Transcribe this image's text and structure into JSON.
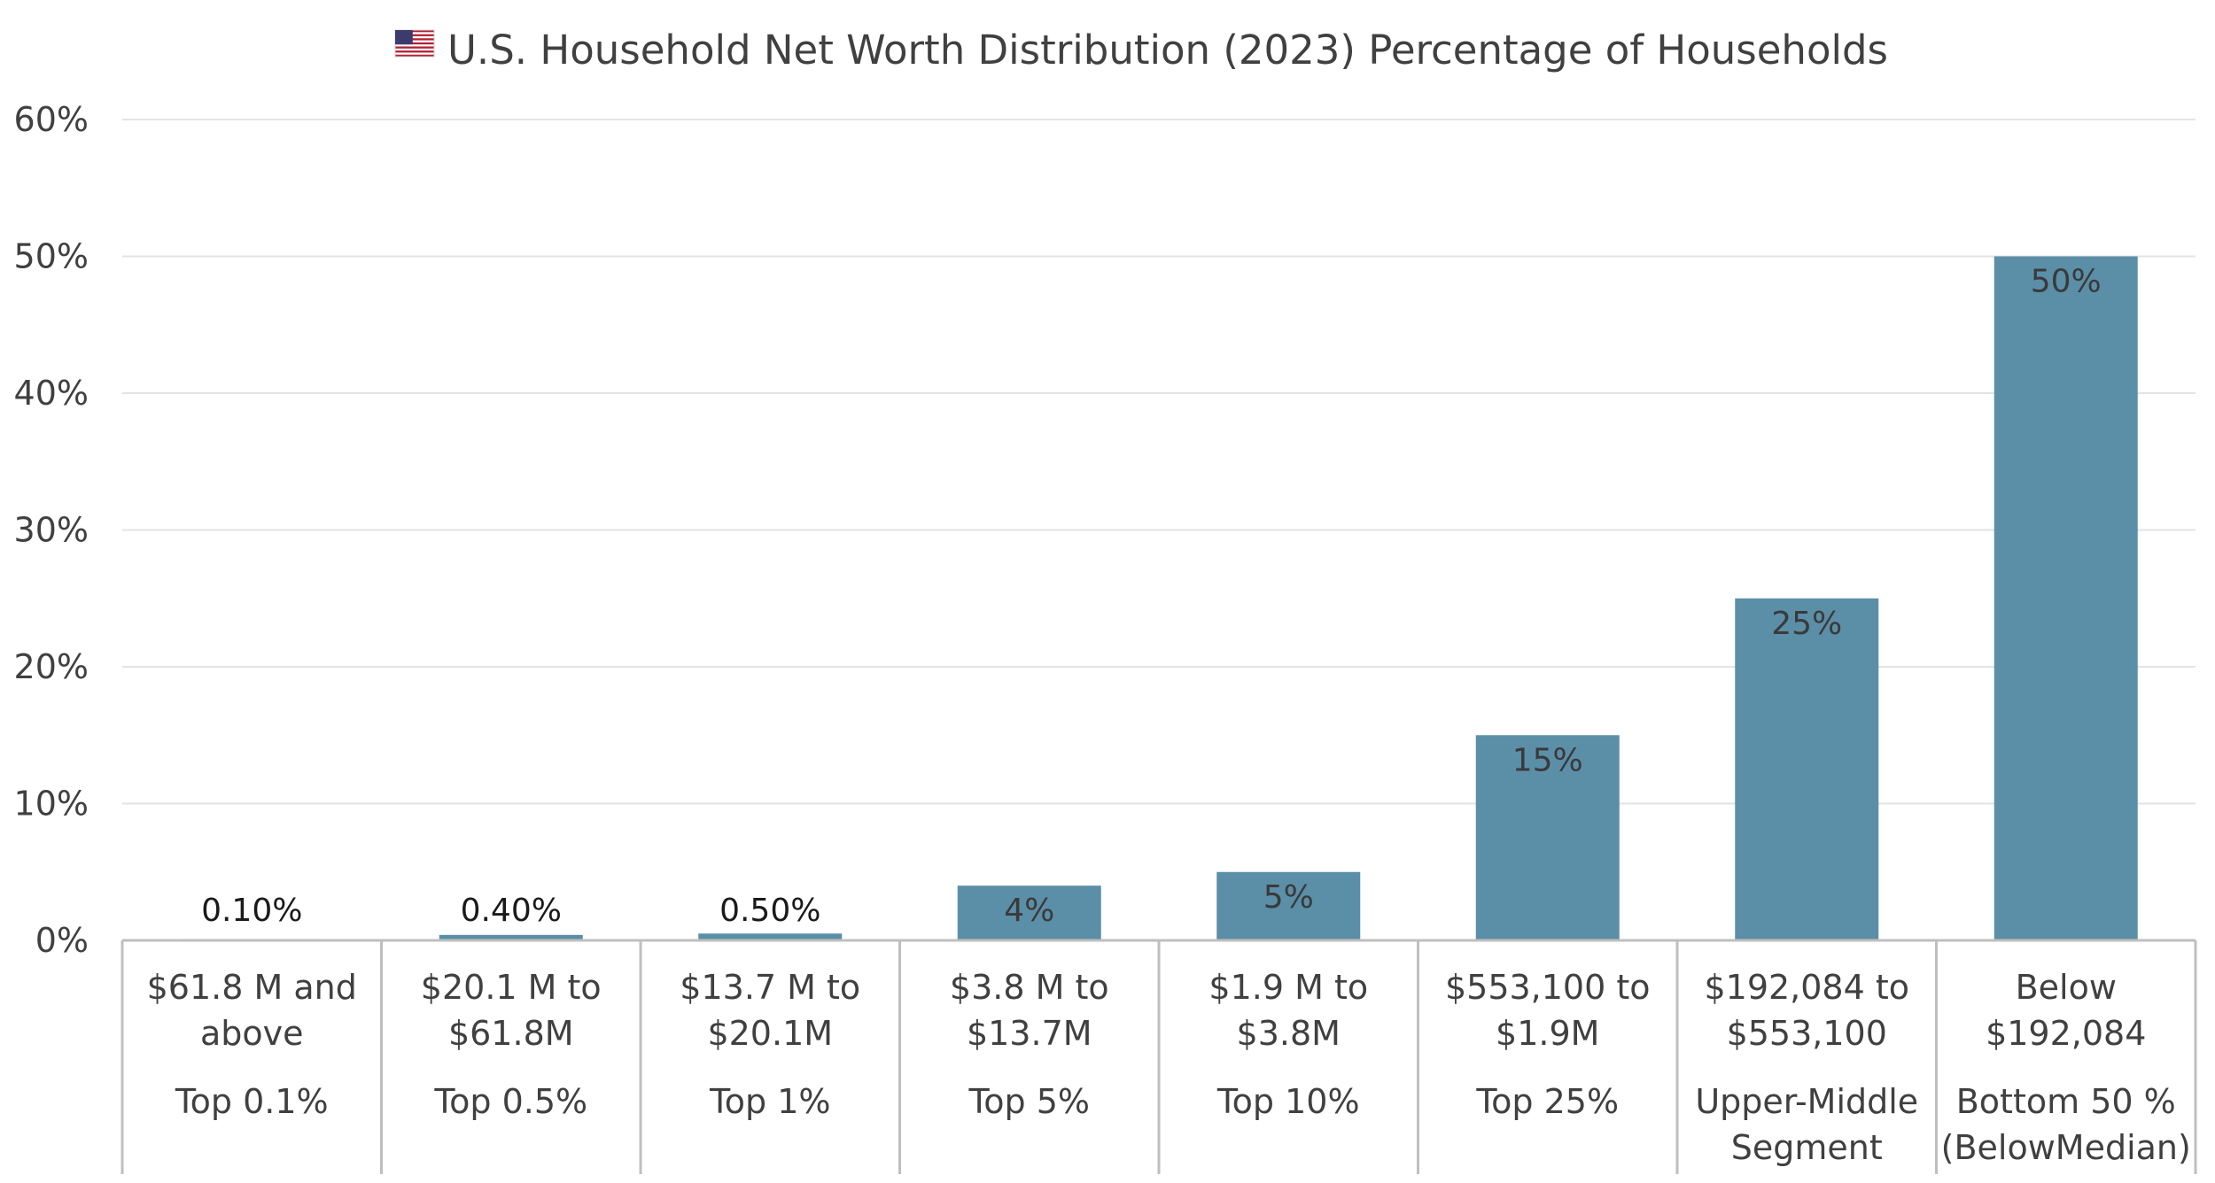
{
  "chart_data": {
    "type": "bar",
    "title": "U.S. Household Net Worth Distribution (2023) Percentage of Households",
    "title_icon": "us-flag-icon",
    "xlabel": "",
    "ylabel": "",
    "ylim": [
      0,
      60
    ],
    "yticks": [
      "0%",
      "10%",
      "20%",
      "30%",
      "40%",
      "50%",
      "60%"
    ],
    "grid": true,
    "legend": "none",
    "bar_color": "#5b8fa8",
    "categories": [
      {
        "range": [
          "$61.8 M and",
          "above"
        ],
        "group": [
          "Top 0.1%"
        ]
      },
      {
        "range": [
          "$20.1 M to",
          "$61.8M"
        ],
        "group": [
          "Top 0.5%"
        ]
      },
      {
        "range": [
          "$13.7 M to",
          "$20.1M"
        ],
        "group": [
          "Top 1%"
        ]
      },
      {
        "range": [
          "$3.8 M to",
          "$13.7M"
        ],
        "group": [
          "Top 5%"
        ]
      },
      {
        "range": [
          "$1.9 M to",
          "$3.8M"
        ],
        "group": [
          "Top 10%"
        ]
      },
      {
        "range": [
          "$553,100 to",
          "$1.9M"
        ],
        "group": [
          "Top 25%"
        ]
      },
      {
        "range": [
          "$192,084 to",
          "$553,100"
        ],
        "group": [
          "Upper-Middle",
          "Segment"
        ]
      },
      {
        "range": [
          "Below",
          "$192,084"
        ],
        "group": [
          "Bottom 50 %",
          "(BelowMedian)"
        ]
      }
    ],
    "values": [
      0.1,
      0.4,
      0.5,
      4,
      5,
      15,
      25,
      50
    ],
    "data_labels": [
      "0.10%",
      "0.40%",
      "0.50%",
      "4%",
      "5%",
      "15%",
      "25%",
      "50%"
    ]
  }
}
